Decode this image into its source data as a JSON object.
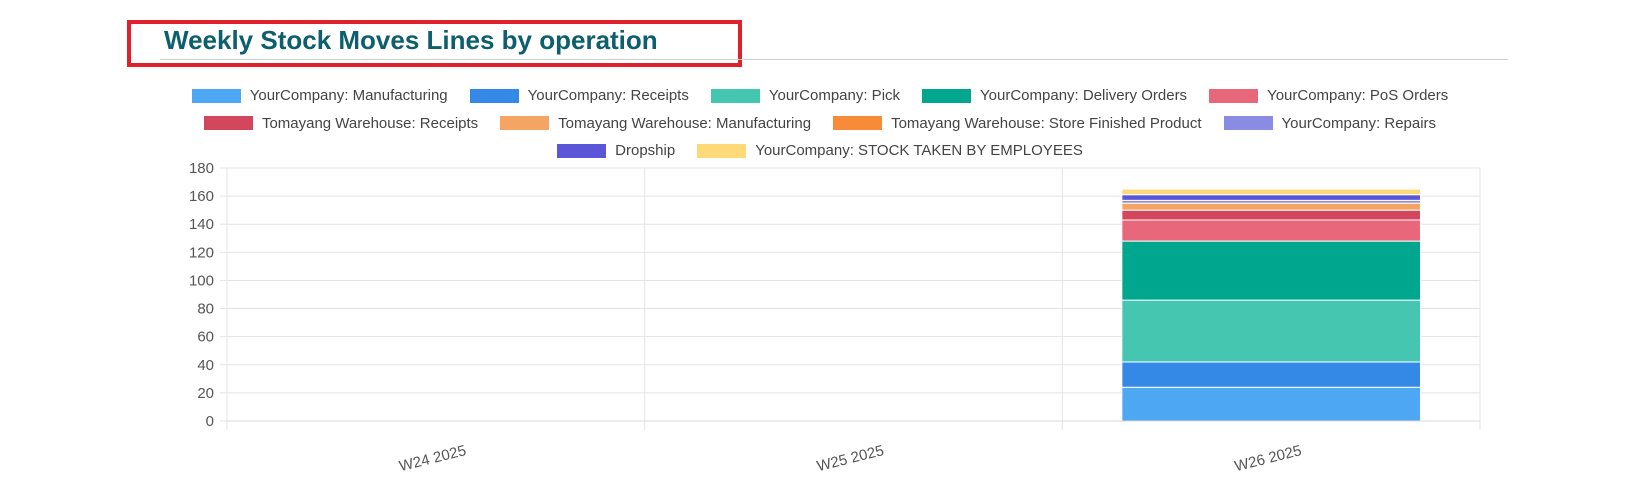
{
  "title": "Weekly Stock Moves Lines by operation",
  "chart_data": {
    "type": "bar",
    "stacked": true,
    "categories": [
      "W24 2025",
      "W25 2025",
      "W26 2025"
    ],
    "ylim": [
      0,
      180
    ],
    "yticks": [
      0,
      20,
      40,
      60,
      80,
      100,
      120,
      140,
      160,
      180
    ],
    "grid": true,
    "legend_position": "top",
    "series": [
      {
        "name": "YourCompany: Manufacturing",
        "color": "#4ea7f2",
        "values": [
          0,
          0,
          24
        ]
      },
      {
        "name": "YourCompany: Receipts",
        "color": "#3488e6",
        "values": [
          0,
          0,
          18
        ]
      },
      {
        "name": "YourCompany: Pick",
        "color": "#45c6b1",
        "values": [
          0,
          0,
          44
        ]
      },
      {
        "name": "YourCompany: Delivery Orders",
        "color": "#00a78e",
        "values": [
          0,
          0,
          42
        ]
      },
      {
        "name": "YourCompany: PoS Orders",
        "color": "#e8677a",
        "values": [
          0,
          0,
          15
        ]
      },
      {
        "name": "Tomayang Warehouse: Receipts",
        "color": "#d2475b",
        "values": [
          0,
          0,
          7
        ]
      },
      {
        "name": "Tomayang Warehouse: Manufacturing",
        "color": "#f4a563",
        "values": [
          0,
          0,
          5
        ]
      },
      {
        "name": "Tomayang Warehouse: Store Finished Product",
        "color": "#f78b3a",
        "values": [
          0,
          0,
          0
        ]
      },
      {
        "name": "YourCompany: Repairs",
        "color": "#8a8be3",
        "values": [
          0,
          0,
          2
        ]
      },
      {
        "name": "Dropship",
        "color": "#5b55d8",
        "values": [
          0,
          0,
          4
        ]
      },
      {
        "name": "YourCompany: STOCK TAKEN BY EMPLOYEES",
        "color": "#fdd977",
        "values": [
          0,
          0,
          4
        ]
      }
    ]
  }
}
